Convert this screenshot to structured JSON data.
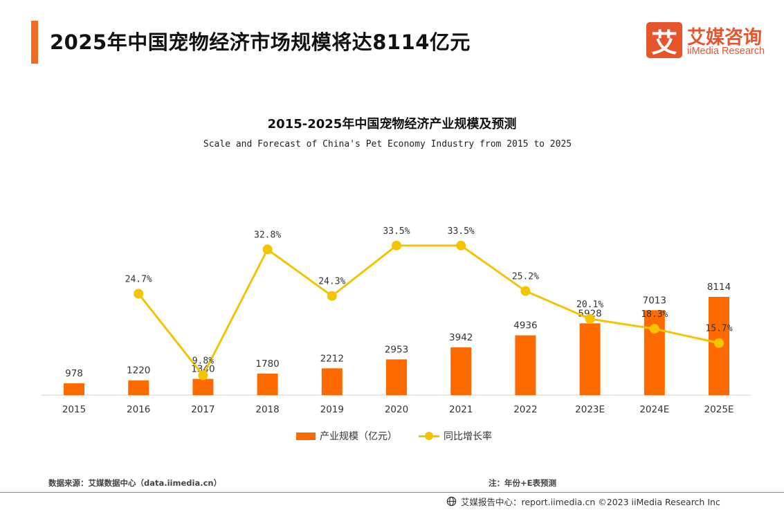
{
  "page": {
    "title": "2025年中国宠物经济市场规模将达8114亿元",
    "accent_color": "#f26b21"
  },
  "logo": {
    "icon_char": "艾",
    "cn": "艾媒咨询",
    "en": "iiMedia Research",
    "color": "#e8552d"
  },
  "chart_data": {
    "type": "bar+line",
    "title": "2015-2025年中国宠物经济产业规模及预测",
    "subtitle": "Scale and Forecast of China's Pet Economy Industry from 2015 to 2025",
    "categories": [
      "2015",
      "2016",
      "2017",
      "2018",
      "2019",
      "2020",
      "2021",
      "2022",
      "2023E",
      "2024E",
      "2025E"
    ],
    "series": [
      {
        "name": "产业规模（亿元）",
        "type": "bar",
        "color": "#ff6a00",
        "values": [
          978,
          1220,
          1340,
          1780,
          2212,
          2953,
          3942,
          4936,
          5928,
          7013,
          8114
        ],
        "labels": [
          "978",
          "1220",
          "1340",
          "1780",
          "2212",
          "2953",
          "3942",
          "4936",
          "5928",
          "7013",
          "8114"
        ]
      },
      {
        "name": "同比增长率",
        "type": "line",
        "color": "#f5c400",
        "values": [
          null,
          24.7,
          9.8,
          32.8,
          24.3,
          33.5,
          33.5,
          25.2,
          20.1,
          18.3,
          15.7
        ],
        "labels": [
          "",
          "24.7%",
          "9.8%",
          "32.8%",
          "24.3%",
          "33.5%",
          "33.5%",
          "25.2%",
          "20.1%",
          "18.3%",
          "15.7%"
        ]
      }
    ],
    "legend_position": "bottom",
    "grid": false
  },
  "footer": {
    "source": "数据来源：艾媒数据中心（data.iimedia.cn）",
    "note": "注：年份+E表预测",
    "copyright": "艾媒报告中心：report.iimedia.cn  ©2023  iiMedia Research Inc"
  }
}
